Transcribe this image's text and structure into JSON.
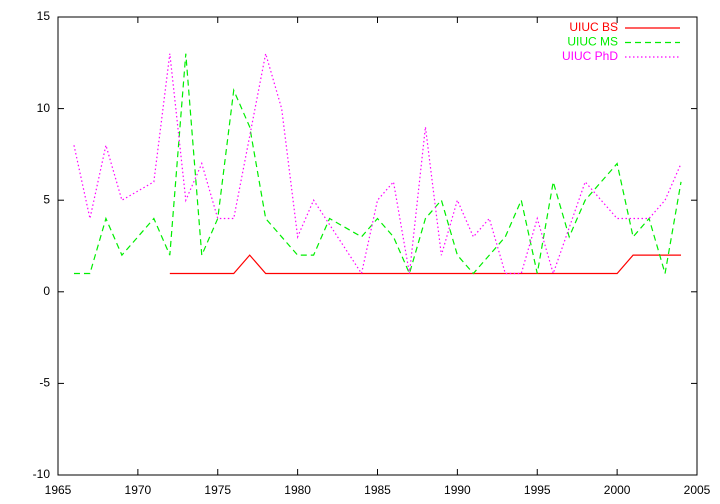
{
  "chart_data": {
    "type": "line",
    "xlim": [
      1965,
      2005
    ],
    "xticks": [
      1965,
      1970,
      1975,
      1980,
      1985,
      1990,
      1995,
      2000,
      2005
    ],
    "ylim": [
      -10,
      15
    ],
    "yticks": [
      -10,
      -5,
      0,
      5,
      10,
      15
    ],
    "legend": "top-right",
    "series": [
      {
        "name": "UIUC BS",
        "color": "#ff0000",
        "style": "solid",
        "x": [
          1972,
          1973,
          1974,
          1975,
          1976,
          1977,
          1978,
          1979,
          1980,
          1981,
          1982,
          1983,
          1984,
          1985,
          1986,
          1987,
          1988,
          1989,
          1990,
          1991,
          1992,
          1993,
          1994,
          1995,
          1996,
          1997,
          1998,
          1999,
          2000,
          2001,
          2002,
          2003,
          2004
        ],
        "values": [
          1,
          1,
          1,
          1,
          1,
          2,
          1,
          1,
          1,
          1,
          1,
          1,
          1,
          1,
          1,
          1,
          1,
          1,
          1,
          1,
          1,
          1,
          1,
          1,
          1,
          1,
          1,
          1,
          1,
          2,
          2,
          2,
          2
        ]
      },
      {
        "name": "UIUC MS",
        "color": "#00ee00",
        "style": "dashed",
        "x": [
          1966,
          1967,
          1968,
          1969,
          1971,
          1972,
          1973,
          1974,
          1975,
          1976,
          1977,
          1978,
          1980,
          1981,
          1982,
          1984,
          1985,
          1986,
          1987,
          1988,
          1989,
          1990,
          1991,
          1993,
          1994,
          1995,
          1996,
          1997,
          1998,
          2000,
          2001,
          2002,
          2003,
          2004
        ],
        "values": [
          1,
          1,
          4,
          2,
          4,
          2,
          13,
          2,
          4,
          11,
          9,
          4,
          2,
          2,
          4,
          3,
          4,
          3,
          1,
          4,
          5,
          2,
          1,
          3,
          5,
          1,
          6,
          3,
          5,
          7,
          3,
          4,
          1,
          6
        ]
      },
      {
        "name": "UIUC PhD",
        "color": "#ff00ff",
        "style": "dotted",
        "x": [
          1966,
          1967,
          1968,
          1969,
          1971,
          1972,
          1973,
          1974,
          1975,
          1976,
          1978,
          1979,
          1980,
          1981,
          1984,
          1985,
          1986,
          1987,
          1988,
          1989,
          1990,
          1991,
          1992,
          1993,
          1994,
          1995,
          1996,
          1998,
          2000,
          2001,
          2002,
          2003,
          2004
        ],
        "values": [
          8,
          4,
          8,
          5,
          6,
          13,
          5,
          7,
          4,
          4,
          13,
          10,
          3,
          5,
          1,
          5,
          6,
          1,
          9,
          2,
          5,
          3,
          4,
          1,
          1,
          4,
          1,
          6,
          4,
          4,
          4,
          5,
          7
        ]
      }
    ]
  }
}
